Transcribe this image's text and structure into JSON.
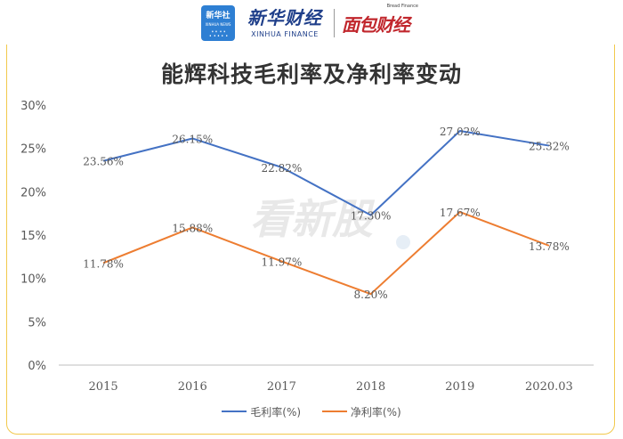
{
  "header": {
    "xinhua_badge_cn": "新华社",
    "xinhua_badge_en": "XINHUA NEWS",
    "xinhua_name_cn": "新华财经",
    "xinhua_name_en": "XINHUA FINANCE",
    "brand_sub": "Bread Finance",
    "brand_main": "面包财经"
  },
  "watermark": "看新股",
  "colors": {
    "gross_margin": "#4472c4",
    "net_margin": "#ed7d31",
    "frame": "#f2c94c"
  },
  "chart_data": {
    "type": "line",
    "title": "能辉科技毛利率及净利率变动",
    "categories": [
      "2015",
      "2016",
      "2017",
      "2018",
      "2019",
      "2020.03"
    ],
    "y_ticks": [
      "0%",
      "5%",
      "10%",
      "15%",
      "20%",
      "25%",
      "30%"
    ],
    "ylim": [
      0,
      30
    ],
    "grid": false,
    "legend_position": "bottom",
    "series": [
      {
        "name": "毛利率(%)",
        "color": "#4472c4",
        "values": [
          23.56,
          26.15,
          22.82,
          17.3,
          27.02,
          25.32
        ],
        "labels": [
          "23.56%",
          "26.15%",
          "22.82%",
          "17.30%",
          "27.02%",
          "25.32%"
        ]
      },
      {
        "name": "净利率(%)",
        "color": "#ed7d31",
        "values": [
          11.78,
          15.88,
          11.97,
          8.2,
          17.67,
          13.78
        ],
        "labels": [
          "11.78%",
          "15.88%",
          "11.97%",
          "8.20%",
          "17.67%",
          "13.78%"
        ]
      }
    ]
  }
}
